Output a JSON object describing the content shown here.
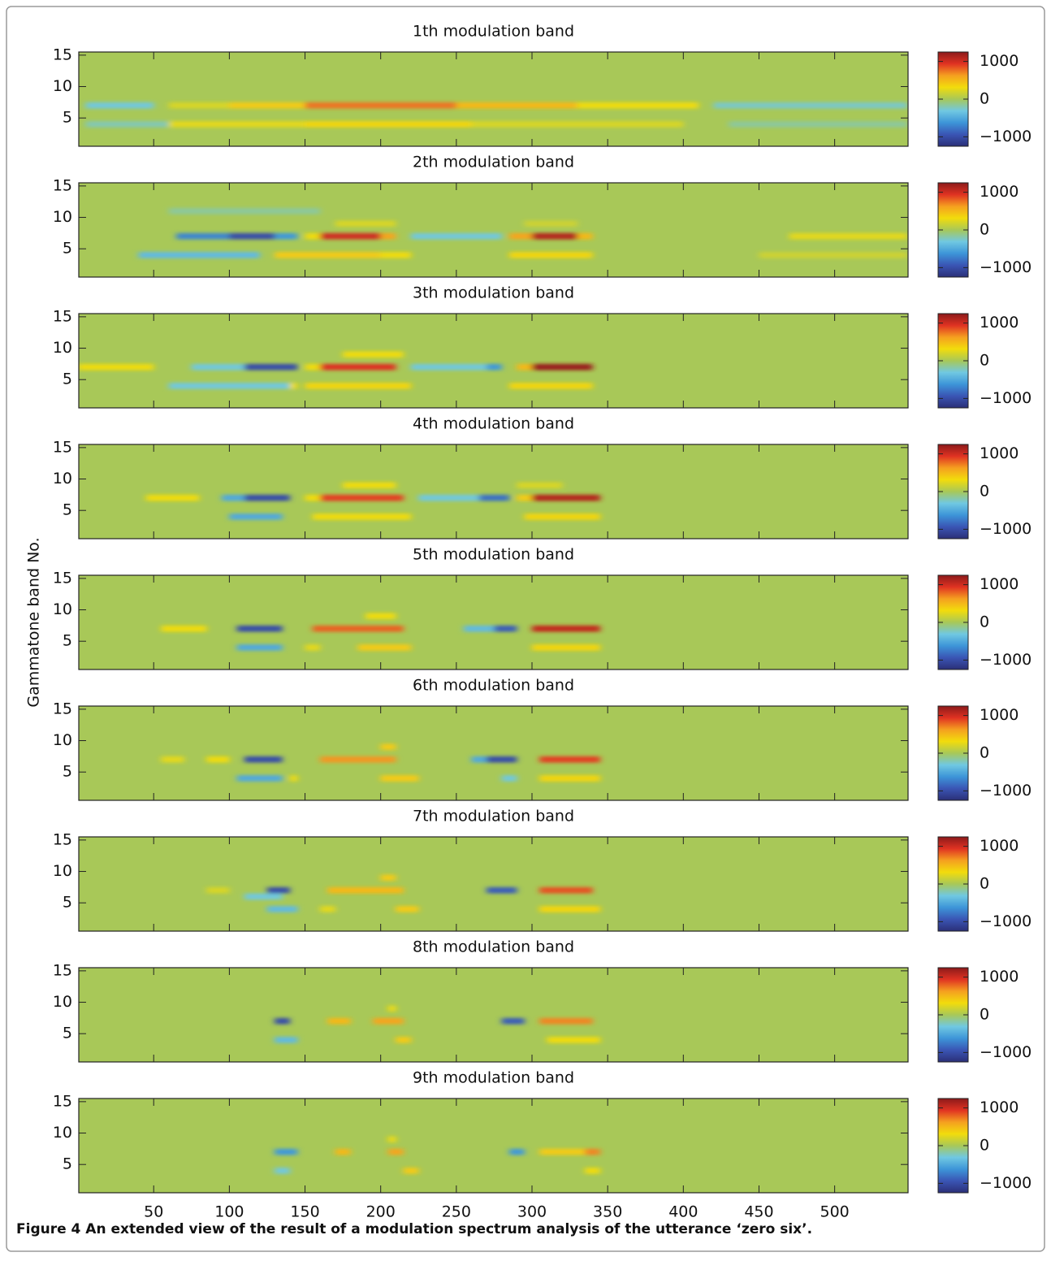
{
  "ylabel": "Gammatone band No.",
  "caption": {
    "label": "Figure 4",
    "text": "An extended view of the result of a modulation spectrum analysis of the utterance ‘zero six’."
  },
  "colormap": [
    "#2b2f78",
    "#3a55b4",
    "#3d95d8",
    "#70c8e2",
    "#a8c858",
    "#f2dc0c",
    "#f5a020",
    "#e03222",
    "#8c1a1a"
  ],
  "chart_data": [
    {
      "type": "heatmap",
      "title": "1th modulation band",
      "xlim": [
        0.5,
        548.5
      ],
      "ylim": [
        0.5,
        15.5
      ],
      "clim": [
        -1250,
        1250
      ],
      "xticks": [
        50,
        100,
        150,
        200,
        250,
        300,
        350,
        400,
        450,
        500
      ],
      "yticks": [
        5,
        10,
        15
      ],
      "cticks": [
        {
          "value": -1000,
          "label": "−1000"
        },
        0,
        1000
      ],
      "cells": [
        [
          7,
          5,
          50,
          -300
        ],
        [
          7,
          60,
          100,
          200
        ],
        [
          7,
          100,
          150,
          400
        ],
        [
          7,
          150,
          250,
          750
        ],
        [
          7,
          250,
          330,
          500
        ],
        [
          7,
          330,
          410,
          300
        ],
        [
          7,
          420,
          548,
          -250
        ],
        [
          4,
          5,
          60,
          -200
        ],
        [
          4,
          60,
          150,
          250
        ],
        [
          4,
          150,
          260,
          350
        ],
        [
          4,
          260,
          400,
          200
        ],
        [
          4,
          430,
          548,
          -150
        ]
      ]
    },
    {
      "type": "heatmap",
      "title": "2th modulation band",
      "xlim": [
        0.5,
        548.5
      ],
      "ylim": [
        0.5,
        15.5
      ],
      "clim": [
        -1250,
        1250
      ],
      "xticks": [
        50,
        100,
        150,
        200,
        250,
        300,
        350,
        400,
        450,
        500
      ],
      "yticks": [
        5,
        10,
        15
      ],
      "cticks": [
        {
          "value": -1000,
          "label": "−1000"
        },
        0,
        1000
      ],
      "cells": [
        [
          11,
          60,
          160,
          -150
        ],
        [
          9,
          170,
          210,
          200
        ],
        [
          9,
          295,
          330,
          150
        ],
        [
          7,
          65,
          100,
          -700
        ],
        [
          7,
          100,
          130,
          -1000
        ],
        [
          7,
          130,
          145,
          -600
        ],
        [
          7,
          150,
          160,
          300
        ],
        [
          7,
          160,
          200,
          1000
        ],
        [
          7,
          200,
          210,
          600
        ],
        [
          7,
          220,
          280,
          -300
        ],
        [
          7,
          285,
          300,
          600
        ],
        [
          7,
          300,
          330,
          1100
        ],
        [
          7,
          330,
          340,
          500
        ],
        [
          7,
          470,
          548,
          250
        ],
        [
          4,
          40,
          120,
          -400
        ],
        [
          4,
          130,
          200,
          400
        ],
        [
          4,
          200,
          220,
          300
        ],
        [
          4,
          285,
          340,
          350
        ],
        [
          4,
          450,
          548,
          150
        ]
      ]
    },
    {
      "type": "heatmap",
      "title": "3th modulation band",
      "xlim": [
        0.5,
        548.5
      ],
      "ylim": [
        0.5,
        15.5
      ],
      "clim": [
        -1250,
        1250
      ],
      "xticks": [
        50,
        100,
        150,
        200,
        250,
        300,
        350,
        400,
        450,
        500
      ],
      "yticks": [
        5,
        10,
        15
      ],
      "cticks": [
        {
          "value": -1000,
          "label": "−1000"
        },
        0,
        1000
      ],
      "cells": [
        [
          9,
          175,
          215,
          300
        ],
        [
          7,
          0,
          50,
          300
        ],
        [
          7,
          75,
          110,
          -300
        ],
        [
          7,
          110,
          145,
          -1000
        ],
        [
          7,
          150,
          160,
          300
        ],
        [
          7,
          160,
          210,
          950
        ],
        [
          7,
          220,
          270,
          -300
        ],
        [
          7,
          270,
          280,
          -600
        ],
        [
          7,
          290,
          300,
          500
        ],
        [
          7,
          300,
          340,
          1200
        ],
        [
          4,
          60,
          140,
          -300
        ],
        [
          4,
          140,
          145,
          300
        ],
        [
          4,
          150,
          220,
          350
        ],
        [
          4,
          285,
          340,
          350
        ]
      ]
    },
    {
      "type": "heatmap",
      "title": "4th modulation band",
      "xlim": [
        0.5,
        548.5
      ],
      "ylim": [
        0.5,
        15.5
      ],
      "clim": [
        -1250,
        1250
      ],
      "xticks": [
        50,
        100,
        150,
        200,
        250,
        300,
        350,
        400,
        450,
        500
      ],
      "yticks": [
        5,
        10,
        15
      ],
      "cticks": [
        {
          "value": -1000,
          "label": "−1000"
        },
        0,
        1000
      ],
      "cells": [
        [
          9,
          175,
          210,
          300
        ],
        [
          9,
          290,
          320,
          200
        ],
        [
          7,
          45,
          80,
          300
        ],
        [
          7,
          95,
          110,
          -500
        ],
        [
          7,
          110,
          140,
          -1000
        ],
        [
          7,
          150,
          160,
          300
        ],
        [
          7,
          160,
          215,
          900
        ],
        [
          7,
          225,
          265,
          -300
        ],
        [
          7,
          265,
          285,
          -800
        ],
        [
          7,
          290,
          300,
          400
        ],
        [
          7,
          300,
          345,
          1100
        ],
        [
          4,
          100,
          135,
          -500
        ],
        [
          4,
          155,
          220,
          300
        ],
        [
          4,
          295,
          345,
          350
        ]
      ]
    },
    {
      "type": "heatmap",
      "title": "5th modulation band",
      "xlim": [
        0.5,
        548.5
      ],
      "ylim": [
        0.5,
        15.5
      ],
      "clim": [
        -1250,
        1250
      ],
      "xticks": [
        50,
        100,
        150,
        200,
        250,
        300,
        350,
        400,
        450,
        500
      ],
      "yticks": [
        5,
        10,
        15
      ],
      "cticks": [
        {
          "value": -1000,
          "label": "−1000"
        },
        0,
        1000
      ],
      "cells": [
        [
          9,
          190,
          210,
          300
        ],
        [
          7,
          55,
          85,
          300
        ],
        [
          7,
          105,
          135,
          -1000
        ],
        [
          7,
          155,
          215,
          800
        ],
        [
          7,
          255,
          275,
          -400
        ],
        [
          7,
          275,
          290,
          -900
        ],
        [
          7,
          300,
          345,
          1050
        ],
        [
          4,
          105,
          135,
          -500
        ],
        [
          4,
          150,
          160,
          250
        ],
        [
          4,
          185,
          220,
          400
        ],
        [
          4,
          300,
          345,
          350
        ]
      ]
    },
    {
      "type": "heatmap",
      "title": "6th modulation band",
      "xlim": [
        0.5,
        548.5
      ],
      "ylim": [
        0.5,
        15.5
      ],
      "clim": [
        -1250,
        1250
      ],
      "xticks": [
        50,
        100,
        150,
        200,
        250,
        300,
        350,
        400,
        450,
        500
      ],
      "yticks": [
        5,
        10,
        15
      ],
      "cticks": [
        {
          "value": -1000,
          "label": "−1000"
        },
        0,
        1000
      ],
      "cells": [
        [
          9,
          200,
          210,
          400
        ],
        [
          7,
          55,
          70,
          250
        ],
        [
          7,
          85,
          100,
          300
        ],
        [
          7,
          110,
          135,
          -1000
        ],
        [
          7,
          160,
          210,
          650
        ],
        [
          7,
          260,
          270,
          -500
        ],
        [
          7,
          270,
          290,
          -1000
        ],
        [
          7,
          305,
          345,
          900
        ],
        [
          4,
          105,
          135,
          -500
        ],
        [
          4,
          140,
          145,
          300
        ],
        [
          4,
          200,
          225,
          400
        ],
        [
          4,
          280,
          290,
          -300
        ],
        [
          4,
          305,
          345,
          350
        ]
      ]
    },
    {
      "type": "heatmap",
      "title": "7th modulation band",
      "xlim": [
        0.5,
        548.5
      ],
      "ylim": [
        0.5,
        15.5
      ],
      "clim": [
        -1250,
        1250
      ],
      "xticks": [
        50,
        100,
        150,
        200,
        250,
        300,
        350,
        400,
        450,
        500
      ],
      "yticks": [
        5,
        10,
        15
      ],
      "cticks": [
        {
          "value": -1000,
          "label": "−1000"
        },
        0,
        1000
      ],
      "cells": [
        [
          9,
          200,
          210,
          400
        ],
        [
          7,
          85,
          100,
          200
        ],
        [
          7,
          125,
          140,
          -1000
        ],
        [
          7,
          165,
          215,
          500
        ],
        [
          7,
          270,
          290,
          -900
        ],
        [
          7,
          305,
          340,
          850
        ],
        [
          6,
          110,
          135,
          -300
        ],
        [
          4,
          125,
          145,
          -400
        ],
        [
          4,
          160,
          170,
          250
        ],
        [
          4,
          210,
          225,
          400
        ],
        [
          4,
          305,
          345,
          350
        ]
      ]
    },
    {
      "type": "heatmap",
      "title": "8th modulation band",
      "xlim": [
        0.5,
        548.5
      ],
      "ylim": [
        0.5,
        15.5
      ],
      "clim": [
        -1250,
        1250
      ],
      "xticks": [
        50,
        100,
        150,
        200,
        250,
        300,
        350,
        400,
        450,
        500
      ],
      "yticks": [
        5,
        10,
        15
      ],
      "cticks": [
        {
          "value": -1000,
          "label": "−1000"
        },
        0,
        1000
      ],
      "cells": [
        [
          9,
          205,
          210,
          300
        ],
        [
          7,
          130,
          140,
          -1000
        ],
        [
          7,
          165,
          180,
          500
        ],
        [
          7,
          195,
          215,
          600
        ],
        [
          7,
          280,
          295,
          -900
        ],
        [
          7,
          305,
          340,
          700
        ],
        [
          4,
          130,
          145,
          -400
        ],
        [
          4,
          210,
          220,
          400
        ],
        [
          4,
          310,
          345,
          300
        ]
      ]
    },
    {
      "type": "heatmap",
      "title": "9th modulation band",
      "xlim": [
        0.5,
        548.5
      ],
      "ylim": [
        0.5,
        15.5
      ],
      "clim": [
        -1250,
        1250
      ],
      "xticks": [
        50,
        100,
        150,
        200,
        250,
        300,
        350,
        400,
        450,
        500
      ],
      "yticks": [
        5,
        10,
        15
      ],
      "cticks": [
        {
          "value": -1000,
          "label": "−1000"
        },
        0,
        1000
      ],
      "cells": [
        [
          9,
          205,
          210,
          300
        ],
        [
          7,
          130,
          145,
          -600
        ],
        [
          7,
          170,
          180,
          500
        ],
        [
          7,
          205,
          215,
          600
        ],
        [
          7,
          285,
          295,
          -600
        ],
        [
          7,
          305,
          335,
          400
        ],
        [
          7,
          335,
          345,
          700
        ],
        [
          4,
          130,
          140,
          -300
        ],
        [
          4,
          215,
          225,
          400
        ],
        [
          4,
          335,
          345,
          300
        ]
      ]
    }
  ]
}
